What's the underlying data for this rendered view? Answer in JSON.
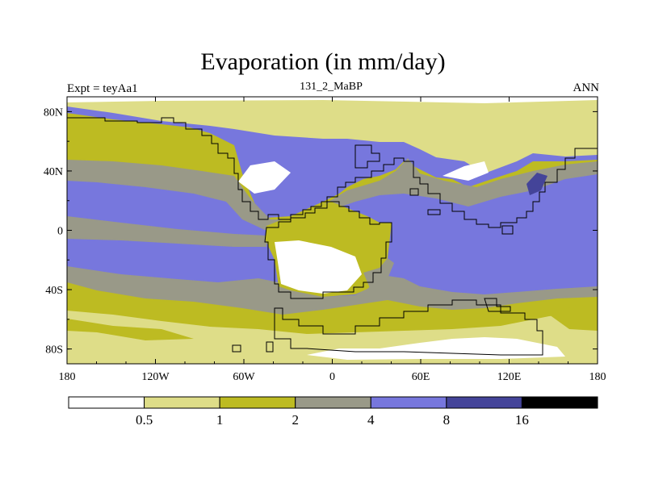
{
  "chart_data": {
    "type": "heatmap",
    "title": "Evaporation (in mm/day)",
    "left_string": "Expt = teyAa1",
    "center_string": "131_2_MaBP",
    "right_string": "ANN",
    "x_axis": {
      "range": [
        -180,
        180
      ],
      "ticks": [
        {
          "value": -180,
          "label": "180"
        },
        {
          "value": -120,
          "label": "120W"
        },
        {
          "value": -60,
          "label": "60W"
        },
        {
          "value": 0,
          "label": "0"
        },
        {
          "value": 60,
          "label": "60E"
        },
        {
          "value": 120,
          "label": "120E"
        },
        {
          "value": 180,
          "label": "180"
        }
      ]
    },
    "y_axis": {
      "range": [
        -90,
        90
      ],
      "ticks": [
        {
          "value": 80,
          "label": "80N"
        },
        {
          "value": 40,
          "label": "40N"
        },
        {
          "value": 0,
          "label": "0"
        },
        {
          "value": -40,
          "label": "40S"
        },
        {
          "value": -80,
          "label": "80S"
        }
      ]
    },
    "colorbar": {
      "levels": [
        "0.5",
        "1",
        "2",
        "4",
        "8",
        "16"
      ],
      "colors": [
        "#ffffff",
        "#dedd88",
        "#bdbb22",
        "#999988",
        "#7777dd",
        "#444499",
        "#000000"
      ]
    }
  }
}
